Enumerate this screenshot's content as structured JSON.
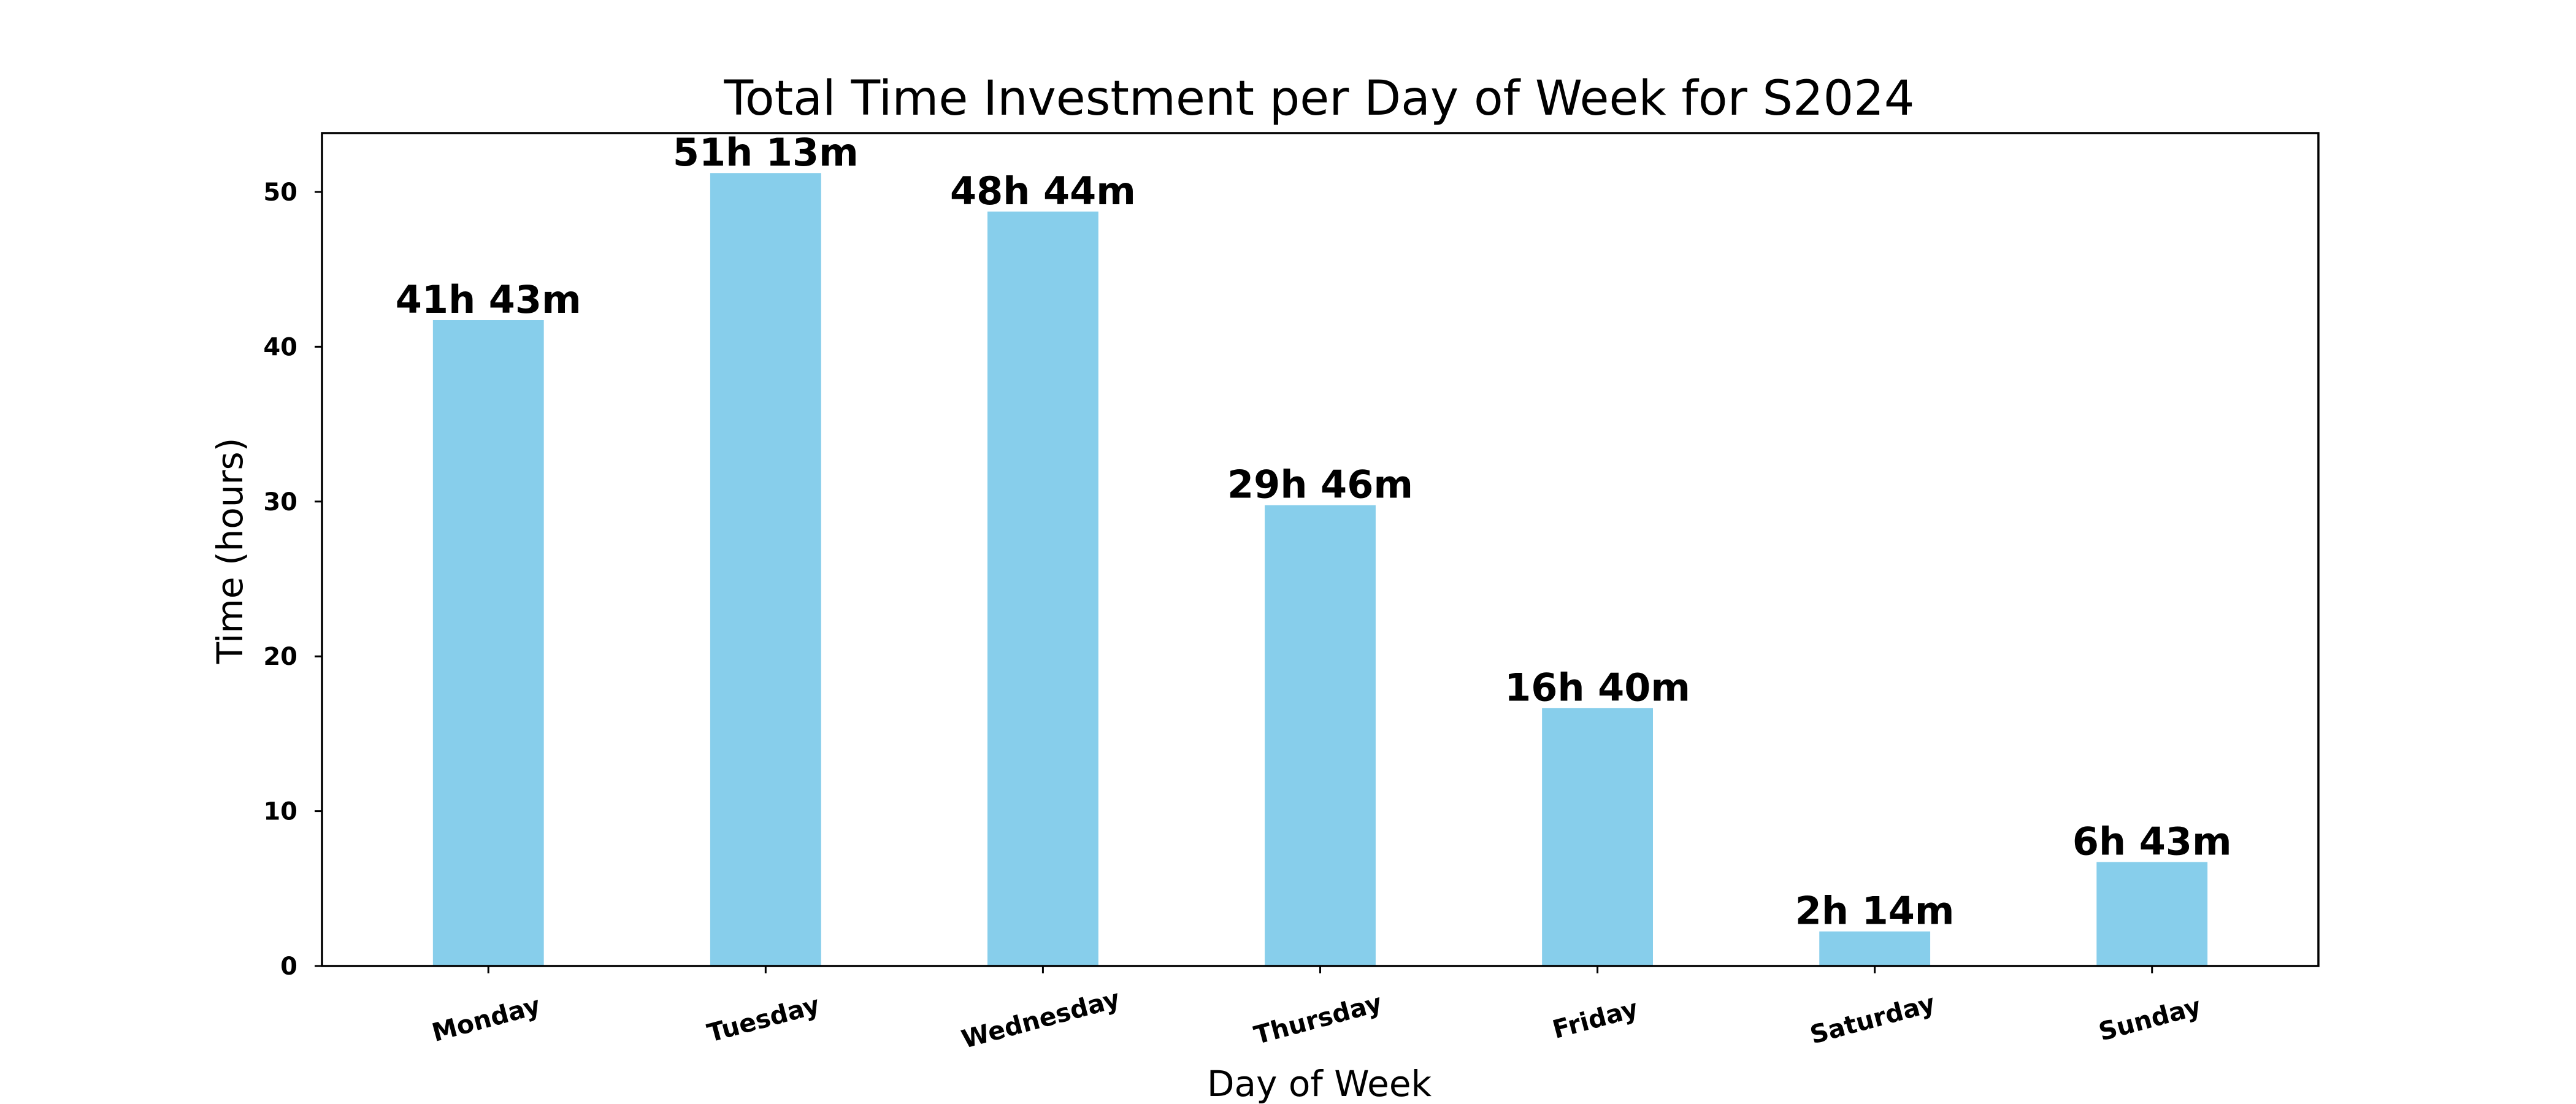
{
  "chart_data": {
    "type": "bar",
    "title": "Total Time Investment per Day of Week for S2024",
    "xlabel": "Day of Week",
    "ylabel": "Time (hours)",
    "categories": [
      "Monday",
      "Tuesday",
      "Wednesday",
      "Thursday",
      "Friday",
      "Saturday",
      "Sunday"
    ],
    "values": [
      41.7167,
      51.2167,
      48.7333,
      29.7667,
      16.6667,
      2.2333,
      6.7167
    ],
    "data_labels": [
      "41h 43m",
      "51h 13m",
      "48h 44m",
      "29h 46m",
      "16h 40m",
      "2h 14m",
      "6h 43m"
    ],
    "yticks": [
      0,
      10,
      20,
      30,
      40,
      50
    ],
    "ylim": [
      0,
      53.8
    ],
    "grid": false,
    "bar_color": "#87CEEB"
  }
}
